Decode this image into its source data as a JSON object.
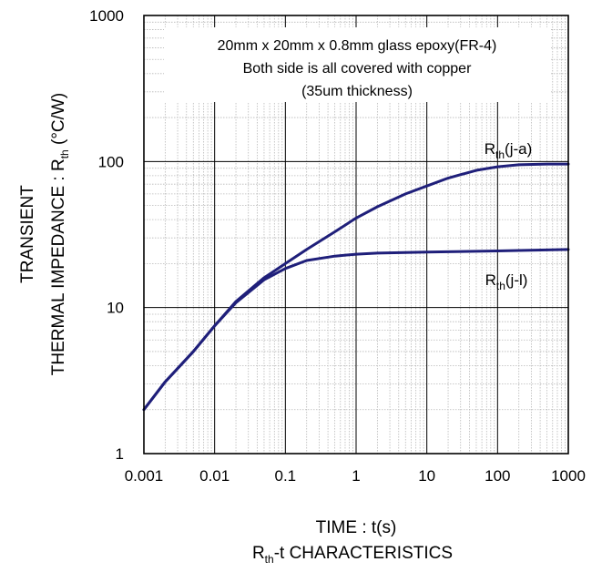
{
  "chart_data": {
    "type": "line",
    "title": "",
    "subtitle_main": "R",
    "subtitle_sub": "th",
    "subtitle_rest": "-t CHARACTERISTICS",
    "xlabel": "TIME : t(s)",
    "ylabel_line1": "TRANSIENT",
    "ylabel_line2_main": "THERMAL IMPEDANCE : R",
    "ylabel_line2_sub": "th",
    "ylabel_line2_rest": " (°C/W)",
    "x_scale": "log",
    "y_scale": "log",
    "xlim": [
      0.001,
      1000
    ],
    "ylim": [
      1,
      1000
    ],
    "x_ticks": [
      {
        "value": 0.001,
        "label": "0.001"
      },
      {
        "value": 0.01,
        "label": "0.01"
      },
      {
        "value": 0.1,
        "label": "0.1"
      },
      {
        "value": 1,
        "label": "1"
      },
      {
        "value": 10,
        "label": "10"
      },
      {
        "value": 100,
        "label": "100"
      },
      {
        "value": 1000,
        "label": "1000"
      }
    ],
    "y_ticks": [
      {
        "value": 1,
        "label": "1"
      },
      {
        "value": 10,
        "label": "10"
      },
      {
        "value": 100,
        "label": "100"
      },
      {
        "value": 1000,
        "label": "1000"
      }
    ],
    "grid": true,
    "annotation_lines": [
      "20mm x 20mm x 0.8mm glass epoxy(FR-4)",
      "Both side is all covered with copper",
      "(35um thickness)"
    ],
    "series": [
      {
        "name_main": "R",
        "name_sub": "th",
        "name_rest": "(j-a)",
        "color": "#1f1f7a",
        "x": [
          0.001,
          0.002,
          0.005,
          0.01,
          0.02,
          0.05,
          0.1,
          0.2,
          0.5,
          1,
          2,
          5,
          10,
          20,
          50,
          100,
          200,
          500,
          1000
        ],
        "y": [
          2.0,
          3.1,
          5.0,
          7.5,
          11.0,
          16.0,
          20.0,
          25.0,
          33.0,
          41.0,
          49.0,
          60.0,
          68.0,
          77.0,
          87.0,
          92.0,
          95.0,
          96.0,
          96.0
        ]
      },
      {
        "name_main": "R",
        "name_sub": "th",
        "name_rest": "(j-l)",
        "color": "#1f1f7a",
        "x": [
          0.001,
          0.002,
          0.005,
          0.01,
          0.02,
          0.05,
          0.1,
          0.2,
          0.5,
          1,
          2,
          5,
          10,
          20,
          50,
          100,
          200,
          500,
          1000
        ],
        "y": [
          2.0,
          3.1,
          5.0,
          7.5,
          10.8,
          15.5,
          18.5,
          21.0,
          22.5,
          23.2,
          23.6,
          23.8,
          24.0,
          24.1,
          24.3,
          24.4,
          24.6,
          24.8,
          25.0
        ]
      }
    ]
  }
}
